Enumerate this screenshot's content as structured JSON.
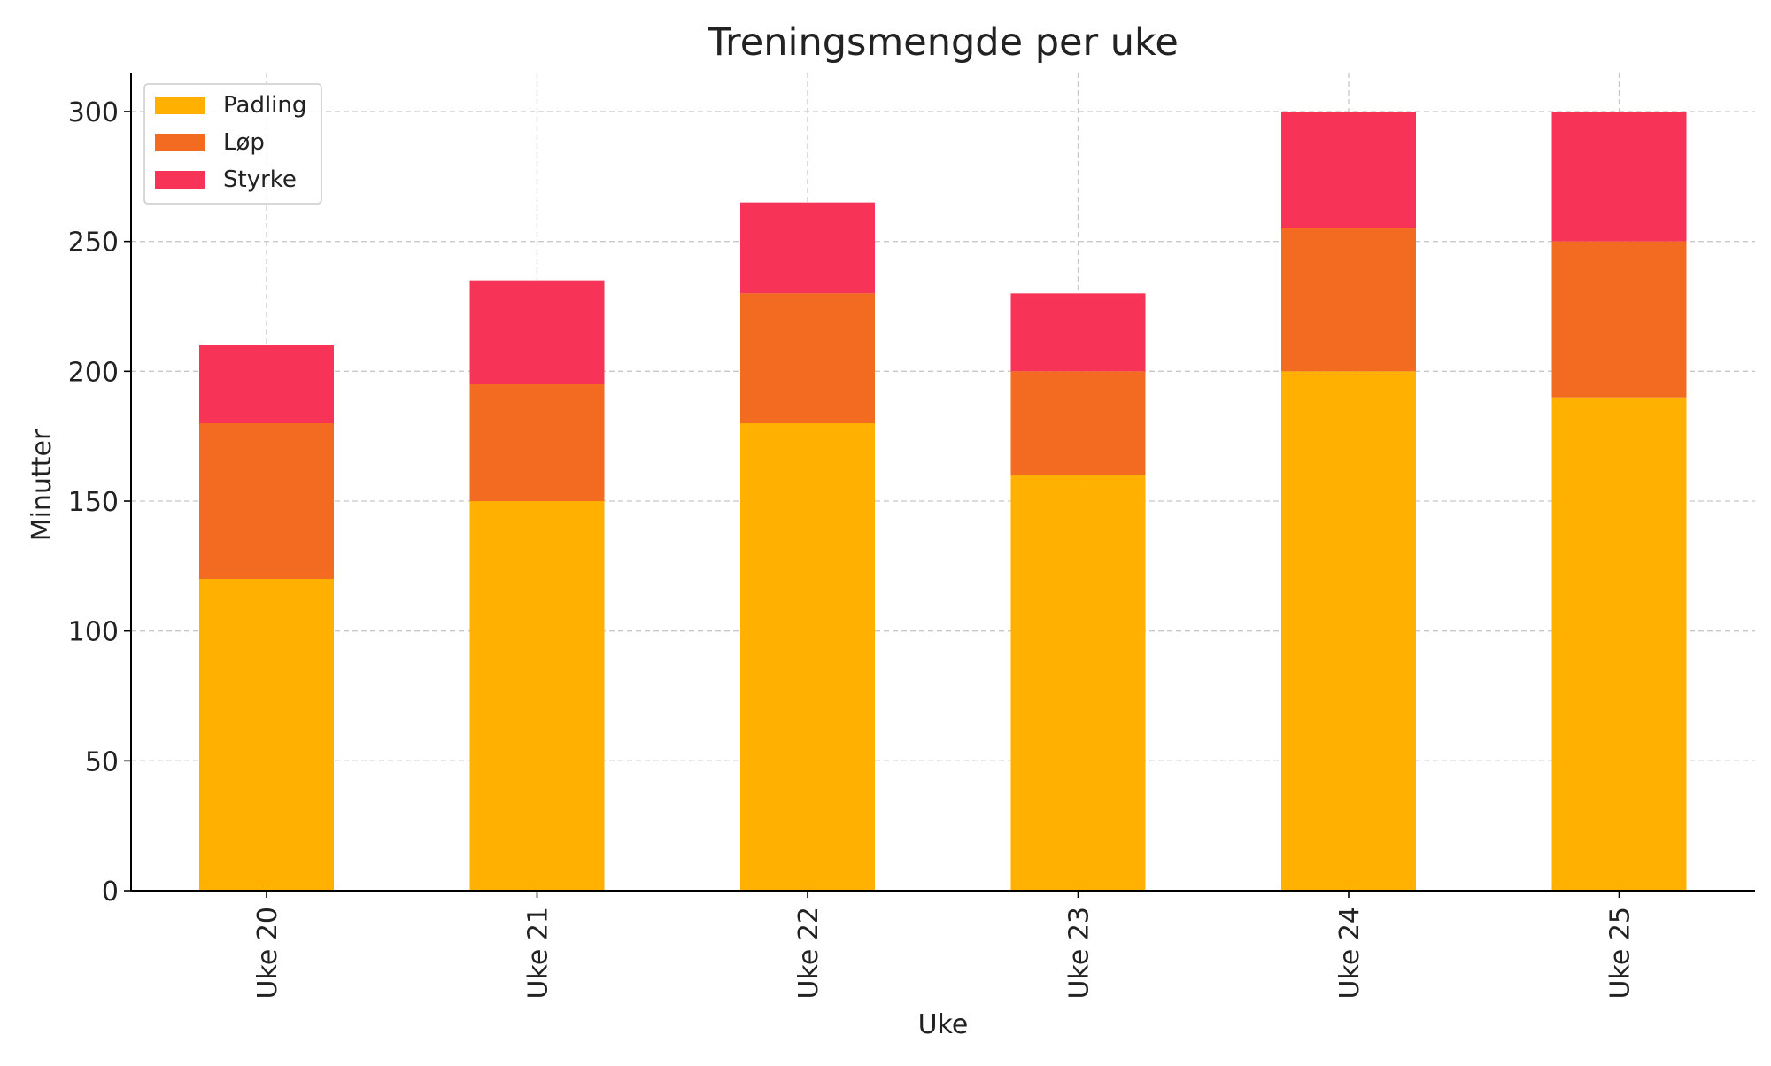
{
  "chart_data": {
    "type": "bar",
    "stacked": true,
    "title": "Treningsmengde per uke",
    "xlabel": "Uke",
    "ylabel": "Minutter",
    "categories": [
      "Uke 20",
      "Uke 21",
      "Uke 22",
      "Uke 23",
      "Uke 24",
      "Uke 25"
    ],
    "series": [
      {
        "name": "Padling",
        "color": "#FFB000",
        "values": [
          120,
          150,
          180,
          160,
          200,
          190
        ]
      },
      {
        "name": "Løp",
        "color": "#F26B21",
        "values": [
          60,
          45,
          50,
          40,
          55,
          60
        ]
      },
      {
        "name": "Styrke",
        "color": "#F73357",
        "values": [
          30,
          40,
          35,
          30,
          45,
          50
        ]
      }
    ],
    "ylim": [
      0,
      315
    ],
    "yticks": [
      0,
      50,
      100,
      150,
      200,
      250,
      300
    ],
    "grid": true,
    "legend_position": "top-left"
  }
}
